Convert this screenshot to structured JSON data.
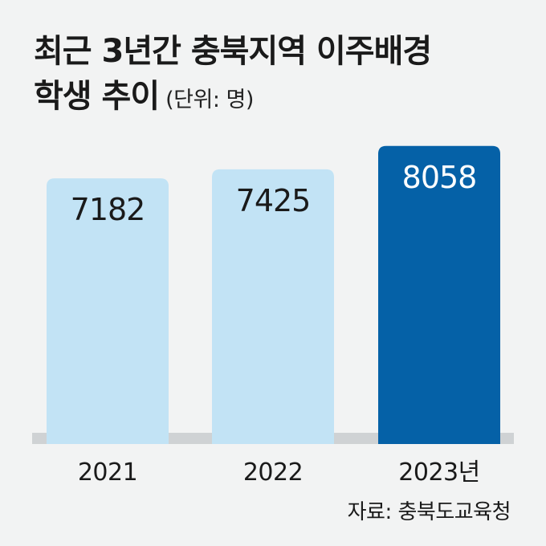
{
  "title": {
    "line1": "최근 3년간 충북지역 이주배경",
    "line2": "학생 추이",
    "unit": "(단위: 명)"
  },
  "source": "자료: 충북도교육청",
  "colors": {
    "background": "#f2f3f3",
    "bar_light": "#c2e3f5",
    "bar_highlight": "#0561a7",
    "baseline_shadow": "#cfd2d4",
    "label_dark": "#1a1a1a",
    "label_light": "#ffffff"
  },
  "chart_data": {
    "type": "bar",
    "categories": [
      "2021",
      "2022",
      "2023년"
    ],
    "values": [
      7182,
      7425,
      8058
    ],
    "value_labels": [
      "7182",
      "7425",
      "8058"
    ],
    "highlight_index": 2,
    "ylim": [
      0,
      8400
    ],
    "grid": false,
    "legend": "none"
  }
}
